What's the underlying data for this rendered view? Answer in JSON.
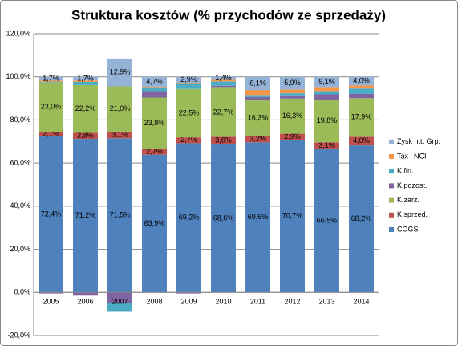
{
  "chart_data": {
    "type": "stacked-bar",
    "title": "Struktura kosztów (% przychodów ze sprzedaży)",
    "categories": [
      "2005",
      "2006",
      "2007",
      "2008",
      "2009",
      "2010",
      "2011",
      "2012",
      "2013",
      "2014"
    ],
    "series": [
      {
        "name": "COGS",
        "color": "#4f81bd",
        "values": [
          72.4,
          71.2,
          71.5,
          63.9,
          69.2,
          68.6,
          69.6,
          70.7,
          66.5,
          68.2
        ],
        "value_labels": [
          "72,4%",
          "71,2%",
          "71,5%",
          "63,9%",
          "69,2%",
          "68,6%",
          "69,6%",
          "70,7%",
          "66,5%",
          "68,2%"
        ]
      },
      {
        "name": "K.sprzed.",
        "color": "#c0504d",
        "values": [
          2.1,
          2.8,
          3.1,
          2.7,
          2.7,
          3.6,
          3.2,
          2.9,
          3.1,
          4.0
        ],
        "value_labels": [
          "2,1%",
          "2,8%",
          "3,1%",
          "2,7%",
          "2,7%",
          "3,6%",
          "3,2%",
          "2,9%",
          "3,1%",
          "4,0%"
        ]
      },
      {
        "name": "K.zarz.",
        "color": "#9bbb59",
        "values": [
          23.0,
          22.2,
          21.0,
          23.8,
          22.5,
          22.7,
          16.3,
          16.3,
          19.8,
          17.9
        ],
        "value_labels": [
          "23,0%",
          "22,2%",
          "21,0%",
          "23,8%",
          "22,5%",
          "22,7%",
          "16,3%",
          "16,3%",
          "19,8%",
          "17,9%"
        ]
      },
      {
        "name": "K.pozost.",
        "color": "#8064a2",
        "values": [
          -0.5,
          -1.5,
          -5.0,
          3.0,
          -0.5,
          1.0,
          1.5,
          1.5,
          2.5,
          2.0
        ]
      },
      {
        "name": "K.fin.",
        "color": "#4bacc6",
        "values": [
          0.3,
          1.5,
          -4.0,
          1.4,
          2.3,
          2.0,
          1.0,
          1.0,
          1.5,
          2.5
        ]
      },
      {
        "name": "Tax i NCI",
        "color": "#f79646",
        "values": [
          0.5,
          0.6,
          0.0,
          0.5,
          0.4,
          0.7,
          2.3,
          1.7,
          1.5,
          1.4
        ]
      },
      {
        "name": "Zysk ntt. Grp.",
        "color": "#95b3d7",
        "values": [
          1.7,
          1.7,
          12.9,
          4.7,
          2.9,
          1.4,
          6.1,
          5.9,
          5.1,
          4.0
        ],
        "value_labels": [
          "1,7%",
          "1,7%",
          "12,9%",
          "4,7%",
          "2,9%",
          "1,4%",
          "6,1%",
          "5,9%",
          "5,1%",
          "4,0%"
        ]
      }
    ],
    "ylim": [
      -20,
      120
    ],
    "yticks": [
      {
        "value": -20,
        "label": "-20,0%"
      },
      {
        "value": 0,
        "label": "0,0%"
      },
      {
        "value": 20,
        "label": "20,0%"
      },
      {
        "value": 40,
        "label": "40,0%"
      },
      {
        "value": 60,
        "label": "60,0%"
      },
      {
        "value": 80,
        "label": "80,0%"
      },
      {
        "value": 100,
        "label": "100,0%"
      },
      {
        "value": 120,
        "label": "120,0%"
      }
    ],
    "grid": true,
    "legend": "right"
  }
}
